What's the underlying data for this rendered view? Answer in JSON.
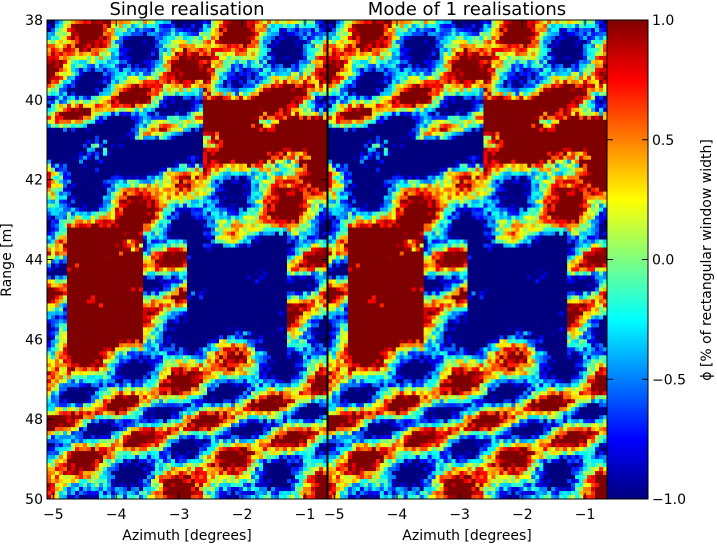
{
  "chart_data": [
    {
      "type": "heatmap",
      "title": "Single realisation",
      "xlabel": "Azimuth [degrees]",
      "ylabel": "Range [m]",
      "xlim": [
        -5.1,
        -0.65
      ],
      "ylim": [
        50,
        38
      ],
      "x_ticks": [
        -5,
        -4,
        -3,
        -2,
        -1
      ],
      "x_tick_labels": [
        "−5",
        "−4",
        "−3",
        "−2",
        "−1"
      ],
      "y_ticks": [
        38,
        40,
        42,
        44,
        46,
        48,
        50
      ],
      "y_tick_labels": [
        "38",
        "40",
        "42",
        "44",
        "46",
        "48",
        "50"
      ],
      "grid": false
    },
    {
      "type": "heatmap",
      "title": "Mode of 1 realisations",
      "xlabel": "Azimuth [degrees]",
      "ylabel": "",
      "xlim": [
        -5.1,
        -0.65
      ],
      "ylim": [
        50,
        38
      ],
      "x_ticks": [
        -5,
        -4,
        -3,
        -2,
        -1
      ],
      "x_tick_labels": [
        "−5",
        "−4",
        "−3",
        "−2",
        "−1"
      ],
      "y_ticks": [],
      "y_tick_labels": [],
      "grid": false
    }
  ],
  "colorbar": {
    "label": "ϕ [% of rectangular window width]",
    "range": [
      -1.0,
      1.0
    ],
    "ticks": [
      1.0,
      0.5,
      0.0,
      -0.5,
      -1.0
    ],
    "tick_labels": [
      "1.0",
      "0.5",
      "0.0",
      "−0.5",
      "−1.0"
    ],
    "colormap": "jet",
    "colors": [
      "#00007f",
      "#0000ff",
      "#007fff",
      "#00ffff",
      "#7fff7f",
      "#ffff00",
      "#ff7f00",
      "#ff0000",
      "#7f0000"
    ]
  }
}
